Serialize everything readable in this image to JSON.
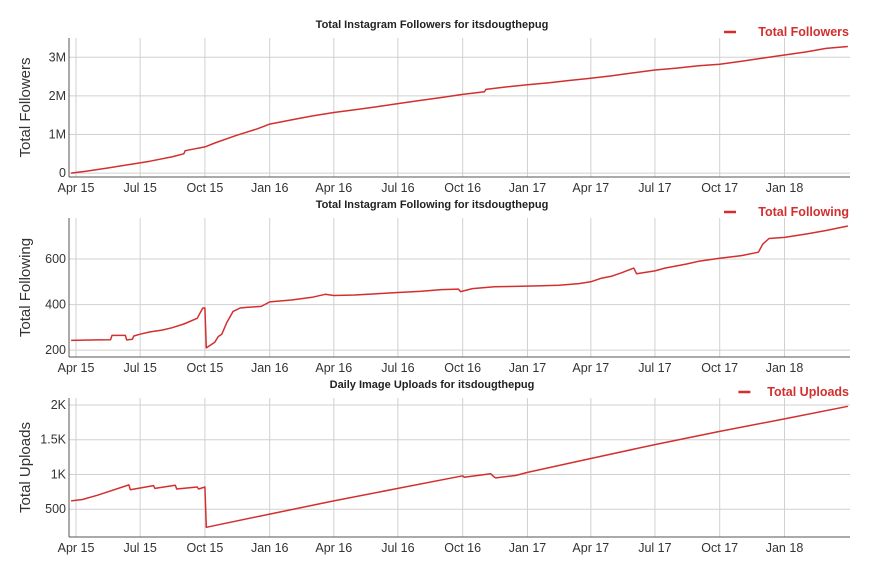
{
  "chart_data": [
    {
      "type": "line",
      "title": "Total Instagram Followers for itsdougthepug",
      "ylabel": "Total Followers",
      "xlabel": "",
      "x_ticks": [
        "Apr 15",
        "Jul 15",
        "Oct 15",
        "Jan 16",
        "Apr 16",
        "Jul 16",
        "Oct 16",
        "Jan 17",
        "Apr 17",
        "Jul 17",
        "Oct 17",
        "Jan 18"
      ],
      "y_ticks": [
        {
          "value": 0,
          "label": "0"
        },
        {
          "value": 1000000,
          "label": "1M"
        },
        {
          "value": 2000000,
          "label": "2M"
        },
        {
          "value": 3000000,
          "label": "3M"
        }
      ],
      "xlim": [
        "2015-03-22",
        "2018-04-04"
      ],
      "ylim": [
        -100000,
        3500000
      ],
      "legend": "top-right",
      "grid": true,
      "color": "#d32f2f",
      "series": [
        {
          "name": "Total Followers",
          "x": [
            "2015-03-25",
            "2015-04-15",
            "2015-05-15",
            "2015-06-15",
            "2015-07-15",
            "2015-08-15",
            "2015-09-01",
            "2015-09-03",
            "2015-10-01",
            "2015-10-15",
            "2015-11-15",
            "2015-12-15",
            "2016-01-01",
            "2016-02-01",
            "2016-03-01",
            "2016-04-01",
            "2016-05-01",
            "2016-06-01",
            "2016-07-01",
            "2016-08-01",
            "2016-09-01",
            "2016-10-01",
            "2016-11-01",
            "2016-11-03",
            "2016-12-01",
            "2017-01-01",
            "2017-02-01",
            "2017-03-01",
            "2017-04-01",
            "2017-05-01",
            "2017-06-01",
            "2017-07-01",
            "2017-08-01",
            "2017-09-01",
            "2017-10-01",
            "2017-11-01",
            "2017-12-01",
            "2018-01-01",
            "2018-02-01",
            "2018-03-01",
            "2018-04-01"
          ],
          "values": [
            0,
            50000,
            130000,
            220000,
            310000,
            420000,
            500000,
            580000,
            680000,
            780000,
            980000,
            1150000,
            1270000,
            1380000,
            1480000,
            1570000,
            1640000,
            1720000,
            1800000,
            1880000,
            1960000,
            2040000,
            2110000,
            2170000,
            2230000,
            2290000,
            2340000,
            2400000,
            2460000,
            2520000,
            2600000,
            2670000,
            2720000,
            2780000,
            2820000,
            2900000,
            2980000,
            3060000,
            3140000,
            3230000,
            3280000
          ]
        }
      ]
    },
    {
      "type": "line",
      "title": "Total Instagram Following for itsdougthepug",
      "ylabel": "Total Following",
      "xlabel": "",
      "x_ticks": [
        "Apr 15",
        "Jul 15",
        "Oct 15",
        "Jan 16",
        "Apr 16",
        "Jul 16",
        "Oct 16",
        "Jan 17",
        "Apr 17",
        "Jul 17",
        "Oct 17",
        "Jan 18"
      ],
      "y_ticks": [
        {
          "value": 200,
          "label": "200"
        },
        {
          "value": 400,
          "label": "400"
        },
        {
          "value": 600,
          "label": "600"
        }
      ],
      "xlim": [
        "2015-03-22",
        "2018-04-04"
      ],
      "ylim": [
        170,
        780
      ],
      "legend": "top-right",
      "grid": true,
      "color": "#d32f2f",
      "series": [
        {
          "name": "Total Following",
          "x": [
            "2015-03-25",
            "2015-05-01",
            "2015-05-20",
            "2015-05-22",
            "2015-06-10",
            "2015-06-12",
            "2015-06-20",
            "2015-06-22",
            "2015-07-01",
            "2015-07-15",
            "2015-08-01",
            "2015-08-15",
            "2015-09-01",
            "2015-09-20",
            "2015-09-28",
            "2015-10-01",
            "2015-10-03",
            "2015-10-15",
            "2015-10-20",
            "2015-10-25",
            "2015-11-01",
            "2015-11-10",
            "2015-11-20",
            "2015-12-01",
            "2015-12-20",
            "2016-01-01",
            "2016-02-01",
            "2016-03-01",
            "2016-03-20",
            "2016-04-01",
            "2016-05-01",
            "2016-06-01",
            "2016-07-01",
            "2016-08-01",
            "2016-09-01",
            "2016-09-25",
            "2016-09-28",
            "2016-10-15",
            "2016-11-15",
            "2016-12-15",
            "2017-01-15",
            "2017-02-15",
            "2017-03-15",
            "2017-04-01",
            "2017-04-15",
            "2017-05-01",
            "2017-05-15",
            "2017-06-01",
            "2017-06-05",
            "2017-07-01",
            "2017-07-15",
            "2017-08-01",
            "2017-08-15",
            "2017-09-01",
            "2017-10-01",
            "2017-11-01",
            "2017-11-25",
            "2017-12-01",
            "2017-12-10",
            "2018-01-01",
            "2018-02-01",
            "2018-03-01",
            "2018-04-01"
          ],
          "values": [
            243,
            245,
            246,
            265,
            265,
            245,
            248,
            262,
            270,
            280,
            288,
            298,
            315,
            340,
            385,
            385,
            210,
            235,
            260,
            270,
            320,
            370,
            385,
            388,
            392,
            412,
            420,
            432,
            445,
            440,
            442,
            448,
            453,
            458,
            466,
            468,
            457,
            470,
            478,
            480,
            482,
            485,
            492,
            500,
            515,
            525,
            540,
            560,
            535,
            548,
            560,
            570,
            578,
            590,
            603,
            615,
            630,
            665,
            690,
            695,
            710,
            725,
            745
          ]
        }
      ]
    },
    {
      "type": "line",
      "title": "Daily Image Uploads for itsdougthepug",
      "ylabel": "Total Uploads",
      "xlabel": "",
      "x_ticks": [
        "Apr 15",
        "Jul 15",
        "Oct 15",
        "Jan 16",
        "Apr 16",
        "Jul 16",
        "Oct 16",
        "Jan 17",
        "Apr 17",
        "Jul 17",
        "Oct 17",
        "Jan 18"
      ],
      "y_ticks": [
        {
          "value": 500,
          "label": "500"
        },
        {
          "value": 1000,
          "label": "1K"
        },
        {
          "value": 1500,
          "label": "1.5K"
        },
        {
          "value": 2000,
          "label": "2K"
        }
      ],
      "xlim": [
        "2015-03-22",
        "2018-04-04"
      ],
      "ylim": [
        100,
        2100
      ],
      "legend": "top-right",
      "grid": true,
      "color": "#d32f2f",
      "series": [
        {
          "name": "Total Uploads",
          "x": [
            "2015-03-25",
            "2015-04-10",
            "2015-05-01",
            "2015-06-15",
            "2015-06-17",
            "2015-07-20",
            "2015-07-22",
            "2015-08-20",
            "2015-08-22",
            "2015-09-20",
            "2015-09-22",
            "2015-10-01",
            "2015-10-03",
            "2016-01-01",
            "2016-04-01",
            "2016-07-01",
            "2016-10-01",
            "2016-10-03",
            "2016-11-10",
            "2016-11-15",
            "2016-11-17",
            "2016-12-15",
            "2017-01-01",
            "2017-04-01",
            "2017-07-01",
            "2017-10-01",
            "2018-01-01",
            "2018-04-01"
          ],
          "values": [
            620,
            640,
            700,
            850,
            780,
            840,
            800,
            845,
            790,
            820,
            790,
            820,
            240,
            430,
            620,
            800,
            980,
            960,
            1010,
            960,
            950,
            985,
            1030,
            1230,
            1430,
            1620,
            1800,
            1980
          ]
        }
      ]
    }
  ]
}
